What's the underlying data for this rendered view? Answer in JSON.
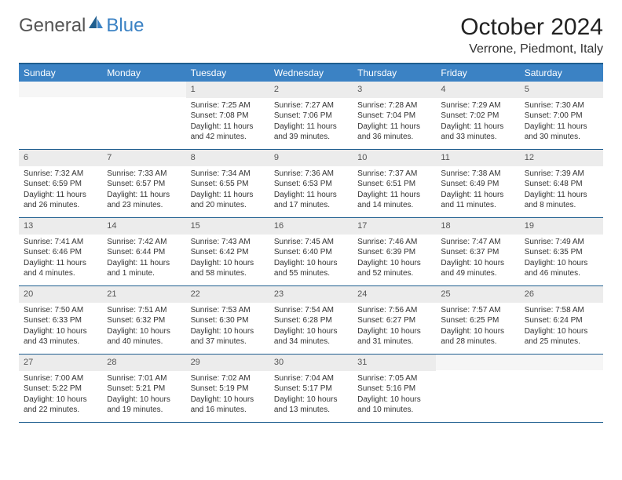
{
  "brand": {
    "part1": "General",
    "part2": "Blue"
  },
  "title": "October 2024",
  "location": "Verrone, Piedmont, Italy",
  "colors": {
    "header_bg": "#3b82c4",
    "border": "#1f5e8f",
    "daynum_bg": "#ececec"
  },
  "weekdays": [
    "Sunday",
    "Monday",
    "Tuesday",
    "Wednesday",
    "Thursday",
    "Friday",
    "Saturday"
  ],
  "weeks": [
    [
      {
        "n": "",
        "sr": "",
        "ss": "",
        "dl1": "",
        "dl2": ""
      },
      {
        "n": "",
        "sr": "",
        "ss": "",
        "dl1": "",
        "dl2": ""
      },
      {
        "n": "1",
        "sr": "Sunrise: 7:25 AM",
        "ss": "Sunset: 7:08 PM",
        "dl1": "Daylight: 11 hours",
        "dl2": "and 42 minutes."
      },
      {
        "n": "2",
        "sr": "Sunrise: 7:27 AM",
        "ss": "Sunset: 7:06 PM",
        "dl1": "Daylight: 11 hours",
        "dl2": "and 39 minutes."
      },
      {
        "n": "3",
        "sr": "Sunrise: 7:28 AM",
        "ss": "Sunset: 7:04 PM",
        "dl1": "Daylight: 11 hours",
        "dl2": "and 36 minutes."
      },
      {
        "n": "4",
        "sr": "Sunrise: 7:29 AM",
        "ss": "Sunset: 7:02 PM",
        "dl1": "Daylight: 11 hours",
        "dl2": "and 33 minutes."
      },
      {
        "n": "5",
        "sr": "Sunrise: 7:30 AM",
        "ss": "Sunset: 7:00 PM",
        "dl1": "Daylight: 11 hours",
        "dl2": "and 30 minutes."
      }
    ],
    [
      {
        "n": "6",
        "sr": "Sunrise: 7:32 AM",
        "ss": "Sunset: 6:59 PM",
        "dl1": "Daylight: 11 hours",
        "dl2": "and 26 minutes."
      },
      {
        "n": "7",
        "sr": "Sunrise: 7:33 AM",
        "ss": "Sunset: 6:57 PM",
        "dl1": "Daylight: 11 hours",
        "dl2": "and 23 minutes."
      },
      {
        "n": "8",
        "sr": "Sunrise: 7:34 AM",
        "ss": "Sunset: 6:55 PM",
        "dl1": "Daylight: 11 hours",
        "dl2": "and 20 minutes."
      },
      {
        "n": "9",
        "sr": "Sunrise: 7:36 AM",
        "ss": "Sunset: 6:53 PM",
        "dl1": "Daylight: 11 hours",
        "dl2": "and 17 minutes."
      },
      {
        "n": "10",
        "sr": "Sunrise: 7:37 AM",
        "ss": "Sunset: 6:51 PM",
        "dl1": "Daylight: 11 hours",
        "dl2": "and 14 minutes."
      },
      {
        "n": "11",
        "sr": "Sunrise: 7:38 AM",
        "ss": "Sunset: 6:49 PM",
        "dl1": "Daylight: 11 hours",
        "dl2": "and 11 minutes."
      },
      {
        "n": "12",
        "sr": "Sunrise: 7:39 AM",
        "ss": "Sunset: 6:48 PM",
        "dl1": "Daylight: 11 hours",
        "dl2": "and 8 minutes."
      }
    ],
    [
      {
        "n": "13",
        "sr": "Sunrise: 7:41 AM",
        "ss": "Sunset: 6:46 PM",
        "dl1": "Daylight: 11 hours",
        "dl2": "and 4 minutes."
      },
      {
        "n": "14",
        "sr": "Sunrise: 7:42 AM",
        "ss": "Sunset: 6:44 PM",
        "dl1": "Daylight: 11 hours",
        "dl2": "and 1 minute."
      },
      {
        "n": "15",
        "sr": "Sunrise: 7:43 AM",
        "ss": "Sunset: 6:42 PM",
        "dl1": "Daylight: 10 hours",
        "dl2": "and 58 minutes."
      },
      {
        "n": "16",
        "sr": "Sunrise: 7:45 AM",
        "ss": "Sunset: 6:40 PM",
        "dl1": "Daylight: 10 hours",
        "dl2": "and 55 minutes."
      },
      {
        "n": "17",
        "sr": "Sunrise: 7:46 AM",
        "ss": "Sunset: 6:39 PM",
        "dl1": "Daylight: 10 hours",
        "dl2": "and 52 minutes."
      },
      {
        "n": "18",
        "sr": "Sunrise: 7:47 AM",
        "ss": "Sunset: 6:37 PM",
        "dl1": "Daylight: 10 hours",
        "dl2": "and 49 minutes."
      },
      {
        "n": "19",
        "sr": "Sunrise: 7:49 AM",
        "ss": "Sunset: 6:35 PM",
        "dl1": "Daylight: 10 hours",
        "dl2": "and 46 minutes."
      }
    ],
    [
      {
        "n": "20",
        "sr": "Sunrise: 7:50 AM",
        "ss": "Sunset: 6:33 PM",
        "dl1": "Daylight: 10 hours",
        "dl2": "and 43 minutes."
      },
      {
        "n": "21",
        "sr": "Sunrise: 7:51 AM",
        "ss": "Sunset: 6:32 PM",
        "dl1": "Daylight: 10 hours",
        "dl2": "and 40 minutes."
      },
      {
        "n": "22",
        "sr": "Sunrise: 7:53 AM",
        "ss": "Sunset: 6:30 PM",
        "dl1": "Daylight: 10 hours",
        "dl2": "and 37 minutes."
      },
      {
        "n": "23",
        "sr": "Sunrise: 7:54 AM",
        "ss": "Sunset: 6:28 PM",
        "dl1": "Daylight: 10 hours",
        "dl2": "and 34 minutes."
      },
      {
        "n": "24",
        "sr": "Sunrise: 7:56 AM",
        "ss": "Sunset: 6:27 PM",
        "dl1": "Daylight: 10 hours",
        "dl2": "and 31 minutes."
      },
      {
        "n": "25",
        "sr": "Sunrise: 7:57 AM",
        "ss": "Sunset: 6:25 PM",
        "dl1": "Daylight: 10 hours",
        "dl2": "and 28 minutes."
      },
      {
        "n": "26",
        "sr": "Sunrise: 7:58 AM",
        "ss": "Sunset: 6:24 PM",
        "dl1": "Daylight: 10 hours",
        "dl2": "and 25 minutes."
      }
    ],
    [
      {
        "n": "27",
        "sr": "Sunrise: 7:00 AM",
        "ss": "Sunset: 5:22 PM",
        "dl1": "Daylight: 10 hours",
        "dl2": "and 22 minutes."
      },
      {
        "n": "28",
        "sr": "Sunrise: 7:01 AM",
        "ss": "Sunset: 5:21 PM",
        "dl1": "Daylight: 10 hours",
        "dl2": "and 19 minutes."
      },
      {
        "n": "29",
        "sr": "Sunrise: 7:02 AM",
        "ss": "Sunset: 5:19 PM",
        "dl1": "Daylight: 10 hours",
        "dl2": "and 16 minutes."
      },
      {
        "n": "30",
        "sr": "Sunrise: 7:04 AM",
        "ss": "Sunset: 5:17 PM",
        "dl1": "Daylight: 10 hours",
        "dl2": "and 13 minutes."
      },
      {
        "n": "31",
        "sr": "Sunrise: 7:05 AM",
        "ss": "Sunset: 5:16 PM",
        "dl1": "Daylight: 10 hours",
        "dl2": "and 10 minutes."
      },
      {
        "n": "",
        "sr": "",
        "ss": "",
        "dl1": "",
        "dl2": ""
      },
      {
        "n": "",
        "sr": "",
        "ss": "",
        "dl1": "",
        "dl2": ""
      }
    ]
  ]
}
